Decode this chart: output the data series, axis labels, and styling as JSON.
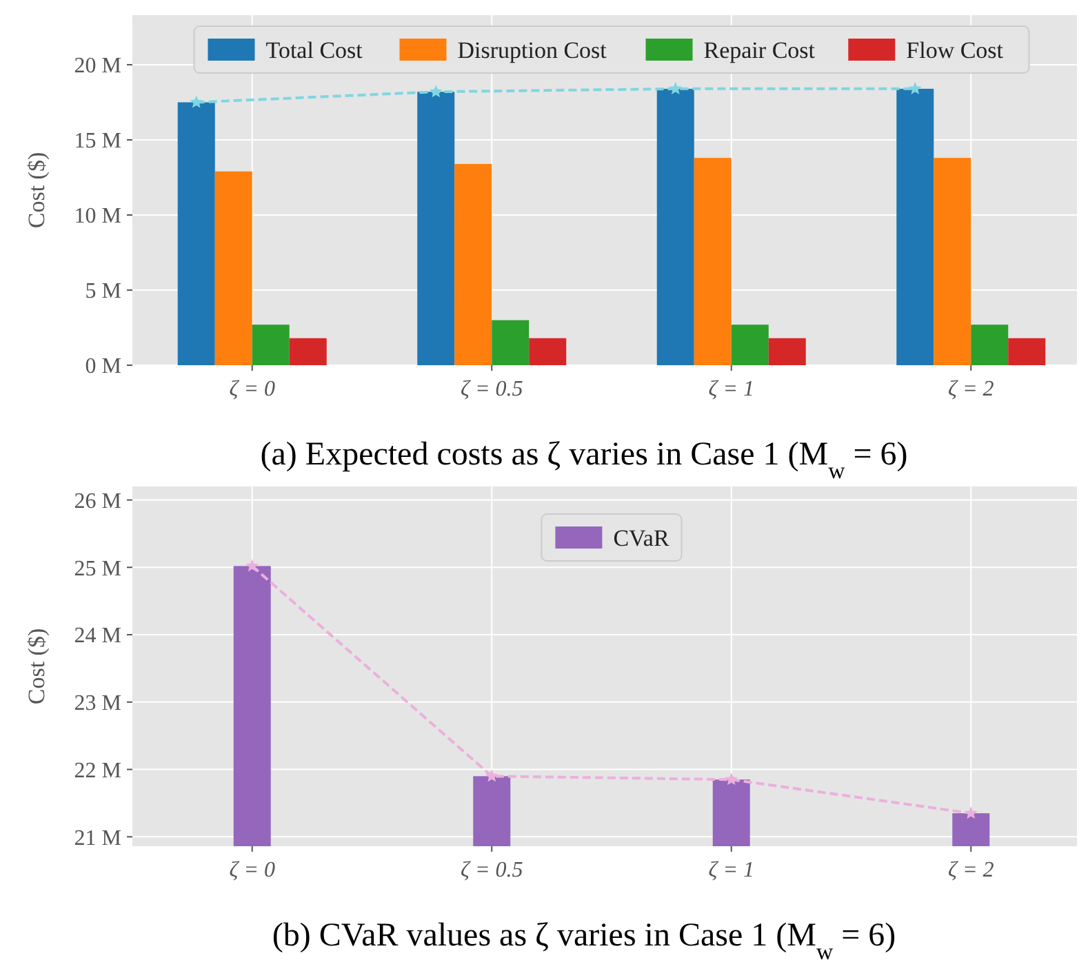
{
  "chart_data": [
    {
      "type": "bar",
      "title": "(a) Expected costs as ζ varies in Case 1 (M$_{w}$ = 6)",
      "ylabel": "Cost ($)",
      "categories": [
        "ζ = 0",
        "ζ = 0.5",
        "ζ = 1",
        "ζ = 2"
      ],
      "ylim": [
        0,
        23.3
      ],
      "yticks": [
        {
          "value": 0,
          "label": "0 M"
        },
        {
          "value": 5,
          "label": "5 M"
        },
        {
          "value": 10,
          "label": "10 M"
        },
        {
          "value": 15,
          "label": "15 M"
        },
        {
          "value": 20,
          "label": "20 M"
        }
      ],
      "grid": true,
      "legend": "top",
      "series": [
        {
          "name": "Total Cost",
          "color": "#1f77b4",
          "values": [
            17.5,
            18.2,
            18.4,
            18.4
          ]
        },
        {
          "name": "Disruption Cost",
          "color": "#ff7f0e",
          "values": [
            12.9,
            13.4,
            13.8,
            13.8
          ]
        },
        {
          "name": "Repair Cost",
          "color": "#2ca02c",
          "values": [
            2.7,
            3.0,
            2.7,
            2.7
          ]
        },
        {
          "name": "Flow Cost",
          "color": "#d62728",
          "values": [
            1.8,
            1.8,
            1.8,
            1.8
          ]
        },
        {
          "type": "line",
          "color": "#7fd6e0",
          "values": [
            17.5,
            18.2,
            18.4,
            18.4
          ],
          "marker": "star",
          "line_style": "dashed"
        }
      ]
    },
    {
      "type": "bar",
      "title": "(b) CVaR values as ζ varies in Case 1 (M$_{w}$ = 6)",
      "ylabel": "Cost ($)",
      "categories": [
        "ζ = 0",
        "ζ = 0.5",
        "ζ = 1",
        "ζ = 2"
      ],
      "ylim": [
        20.86,
        26.2
      ],
      "yticks": [
        {
          "value": 21,
          "label": "21 M"
        },
        {
          "value": 22,
          "label": "22 M"
        },
        {
          "value": 23,
          "label": "23 M"
        },
        {
          "value": 24,
          "label": "24 M"
        },
        {
          "value": 25,
          "label": "25 M"
        },
        {
          "value": 26,
          "label": "26 M"
        }
      ],
      "grid": true,
      "legend": "top",
      "series": [
        {
          "name": "CVaR",
          "color": "#9467bd",
          "values": [
            25.02,
            21.9,
            21.85,
            21.35
          ]
        },
        {
          "type": "line",
          "color": "#ebb0dc",
          "values": [
            25.02,
            21.9,
            21.85,
            21.35
          ],
          "marker": "star",
          "line_style": "dashed"
        }
      ]
    }
  ]
}
